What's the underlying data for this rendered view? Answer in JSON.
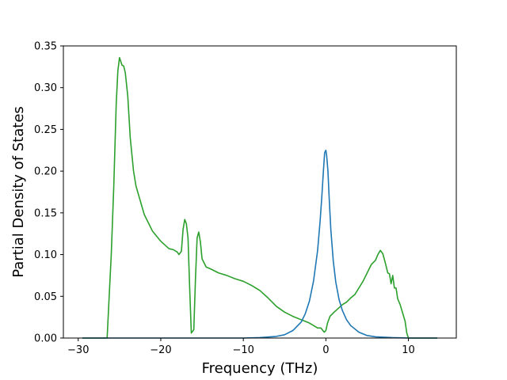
{
  "chart_data": {
    "type": "line",
    "title": "",
    "xlabel": "Frequency (THz)",
    "ylabel": "Partial Density of States",
    "xlim": [
      -31.8,
      15.8
    ],
    "ylim": [
      0,
      0.35
    ],
    "xticks": [
      -30,
      -20,
      -10,
      0,
      10
    ],
    "xtick_labels": [
      "−30",
      "−20",
      "−10",
      "0",
      "10"
    ],
    "yticks": [
      0.0,
      0.05,
      0.1,
      0.15,
      0.2,
      0.25,
      0.3,
      0.35
    ],
    "ytick_labels": [
      "0.00",
      "0.05",
      "0.10",
      "0.15",
      "0.20",
      "0.25",
      "0.30",
      "0.35"
    ],
    "grid": false,
    "legend": "none",
    "series": [
      {
        "color": "#2ca02c",
        "x": [
          -29.5,
          -26.5,
          -26.3,
          -26.0,
          -25.7,
          -25.4,
          -25.2,
          -25.0,
          -24.9,
          -24.7,
          -24.5,
          -24.3,
          -24.0,
          -23.7,
          -23.3,
          -23.0,
          -22.5,
          -22.0,
          -21.0,
          -20.0,
          -19.0,
          -18.5,
          -18.0,
          -17.8,
          -17.5,
          -17.3,
          -17.1,
          -16.9,
          -16.7,
          -16.5,
          -16.3,
          -16.0,
          -15.8,
          -15.6,
          -15.4,
          -15.2,
          -15.0,
          -14.5,
          -14.0,
          -13.0,
          -12.0,
          -11.0,
          -10.0,
          -9.0,
          -8.0,
          -7.0,
          -6.0,
          -5.0,
          -4.0,
          -3.0,
          -2.0,
          -1.0,
          -0.6,
          -0.2,
          0.0,
          0.2,
          0.5,
          1.0,
          2.0,
          2.5,
          3.0,
          3.5,
          4.0,
          4.5,
          5.0,
          5.5,
          6.0,
          6.3,
          6.6,
          6.9,
          7.2,
          7.5,
          7.7,
          7.9,
          8.1,
          8.3,
          8.5,
          8.7,
          9.0,
          9.3,
          9.6,
          9.8,
          10.0,
          10.5,
          11.5,
          13.5
        ],
        "y": [
          0.0,
          0.0,
          0.04,
          0.1,
          0.18,
          0.28,
          0.32,
          0.336,
          0.333,
          0.327,
          0.326,
          0.318,
          0.29,
          0.24,
          0.2,
          0.182,
          0.165,
          0.148,
          0.128,
          0.116,
          0.107,
          0.106,
          0.103,
          0.1,
          0.104,
          0.13,
          0.142,
          0.137,
          0.12,
          0.06,
          0.006,
          0.01,
          0.07,
          0.12,
          0.127,
          0.115,
          0.095,
          0.085,
          0.083,
          0.078,
          0.075,
          0.071,
          0.068,
          0.063,
          0.057,
          0.048,
          0.038,
          0.031,
          0.026,
          0.022,
          0.018,
          0.012,
          0.012,
          0.007,
          0.009,
          0.018,
          0.026,
          0.031,
          0.04,
          0.043,
          0.048,
          0.052,
          0.06,
          0.068,
          0.078,
          0.088,
          0.093,
          0.1,
          0.105,
          0.101,
          0.09,
          0.078,
          0.077,
          0.065,
          0.075,
          0.06,
          0.06,
          0.047,
          0.04,
          0.03,
          0.02,
          0.006,
          0.0,
          0.0,
          0.0,
          0.0
        ]
      },
      {
        "color": "#1f77b4",
        "x": [
          -29.5,
          -10.0,
          -8.0,
          -6.0,
          -5.0,
          -4.0,
          -3.0,
          -2.5,
          -2.0,
          -1.5,
          -1.0,
          -0.7,
          -0.5,
          -0.3,
          -0.15,
          0.0,
          0.1,
          0.25,
          0.4,
          0.6,
          0.9,
          1.2,
          1.6,
          2.0,
          2.5,
          3.0,
          4.0,
          5.0,
          6.0,
          8.0,
          10.0,
          13.5
        ],
        "y": [
          0.0,
          0.0,
          0.0005,
          0.002,
          0.004,
          0.009,
          0.019,
          0.029,
          0.044,
          0.068,
          0.105,
          0.14,
          0.168,
          0.2,
          0.222,
          0.225,
          0.218,
          0.2,
          0.168,
          0.13,
          0.092,
          0.067,
          0.046,
          0.033,
          0.022,
          0.015,
          0.007,
          0.003,
          0.0015,
          0.0005,
          0.0,
          0.0
        ]
      }
    ]
  }
}
